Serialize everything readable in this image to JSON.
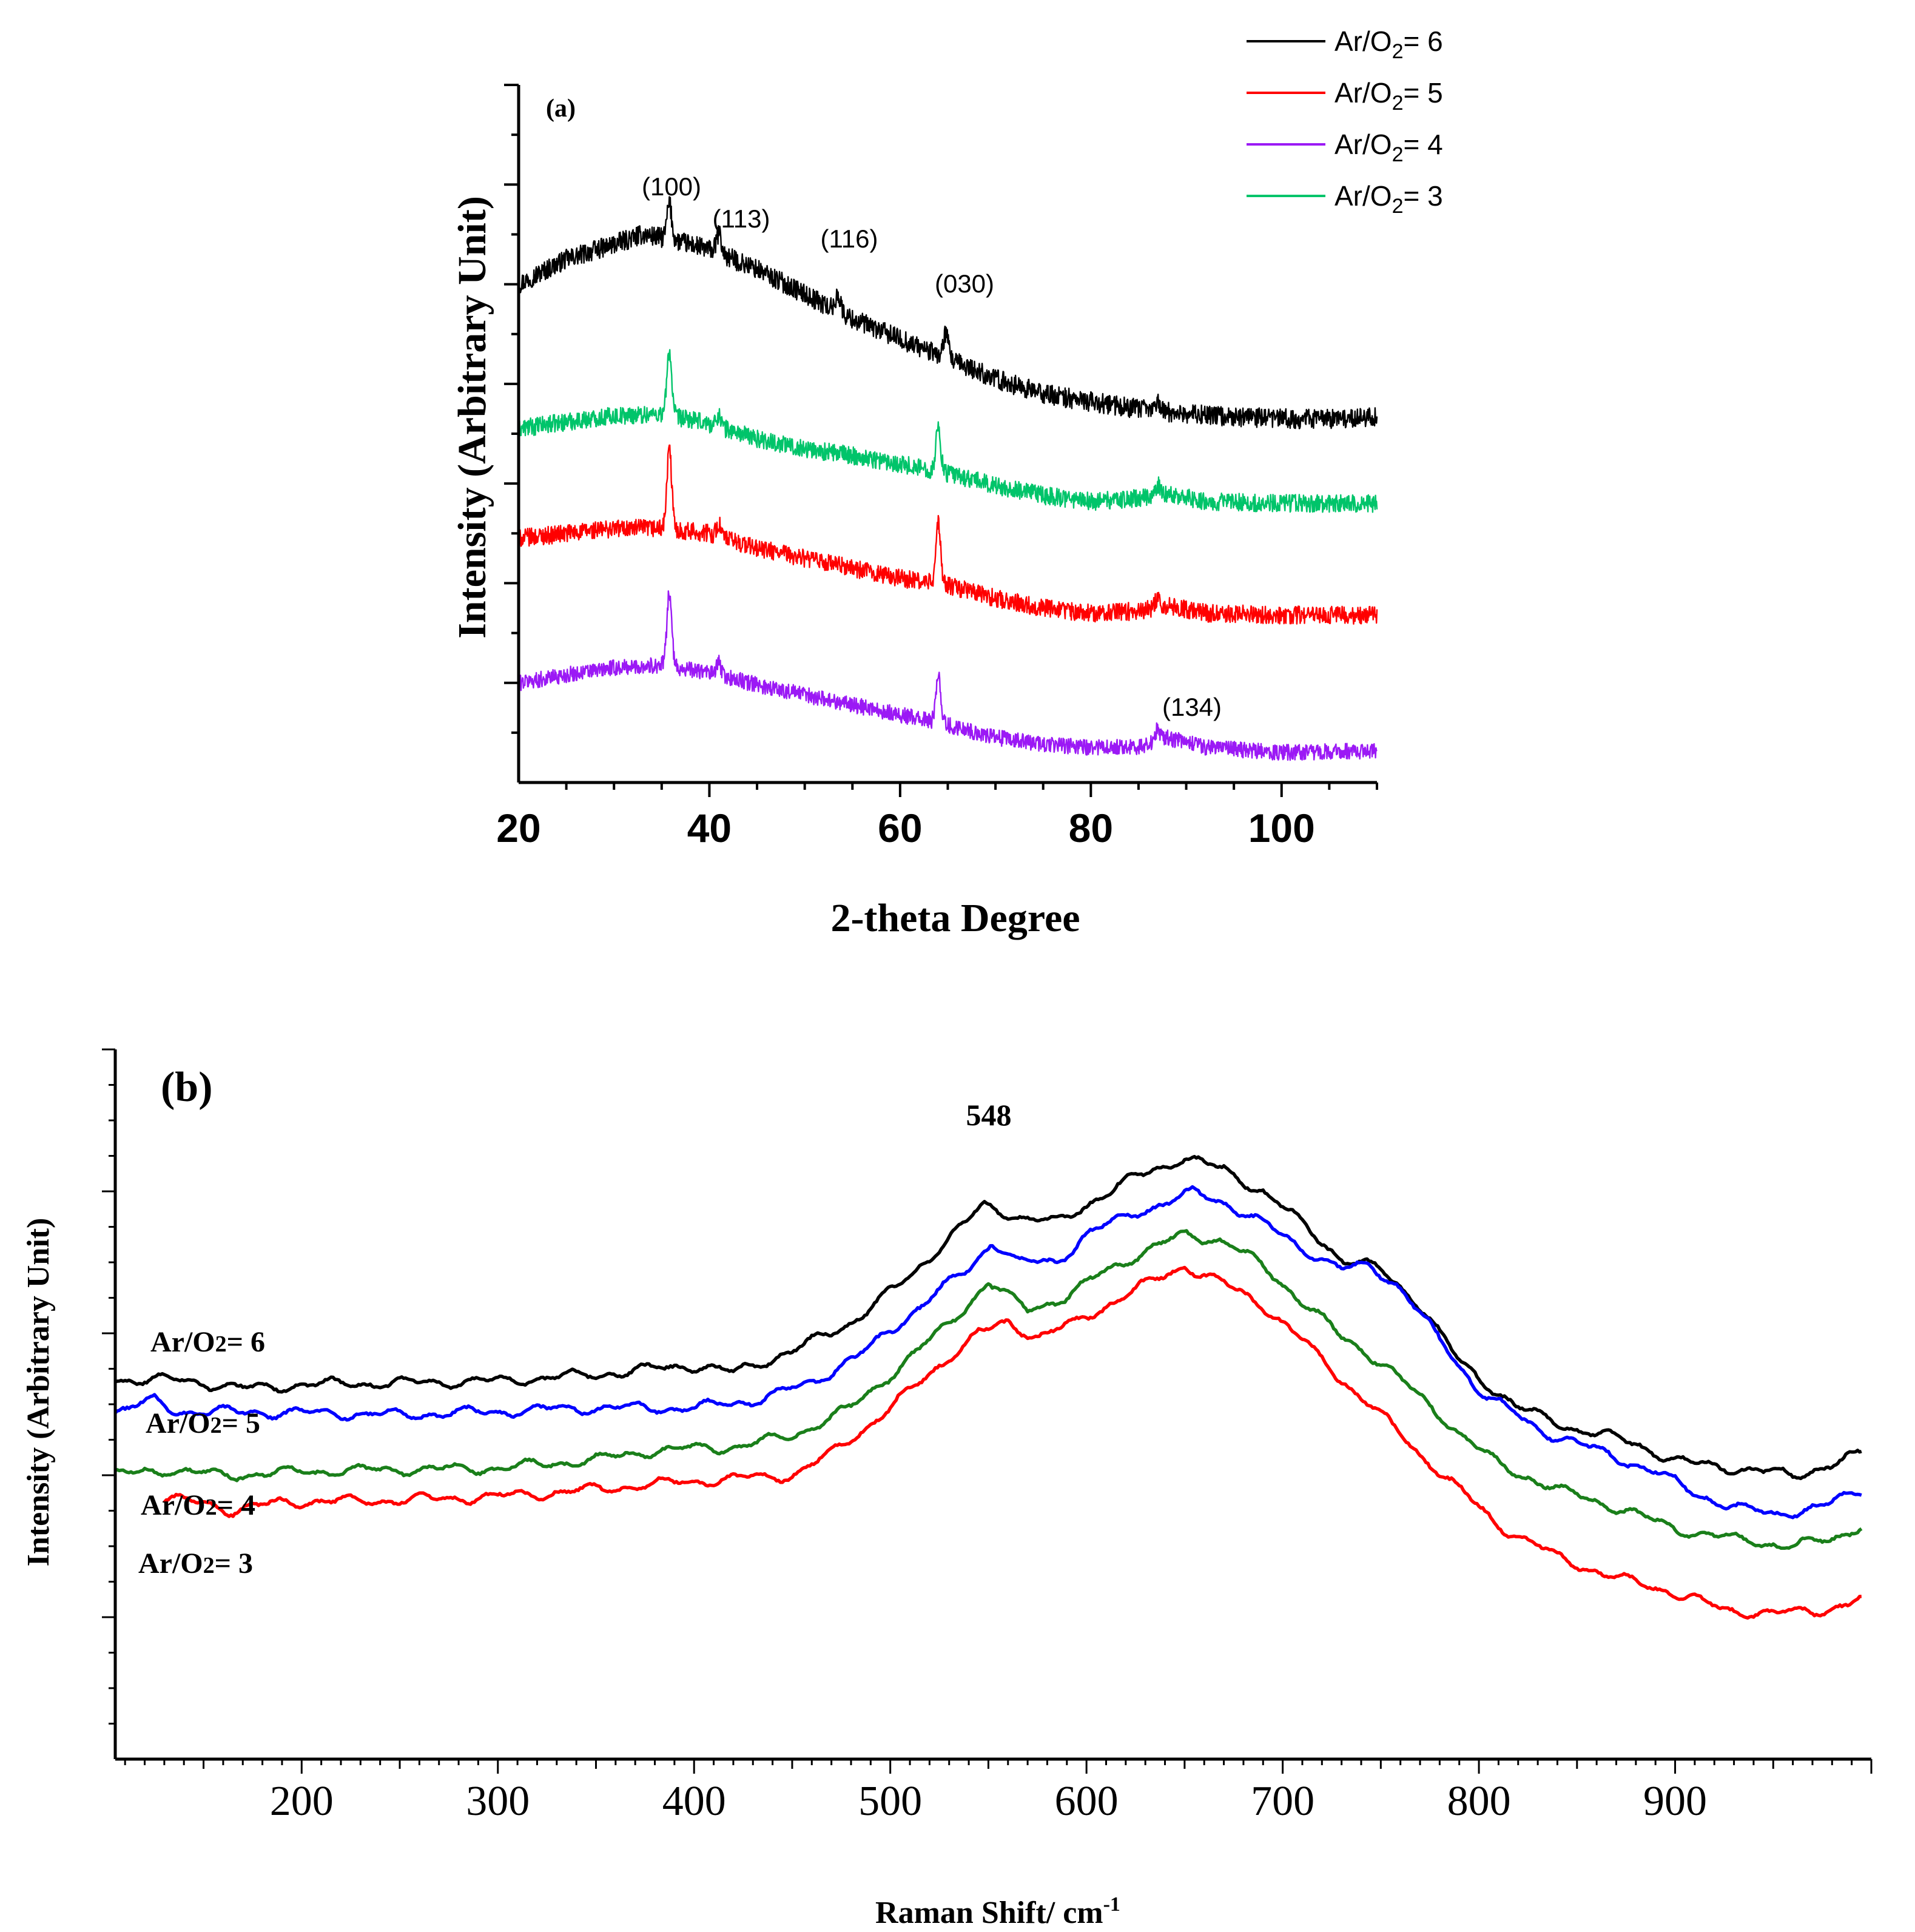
{
  "chart_data": [
    {
      "type": "line",
      "panel": "(a)",
      "title": "",
      "xlabel": "2-theta Degree",
      "ylabel": "Intensity (Arbitrary Unit)",
      "xlim": [
        20,
        110
      ],
      "ylim": [
        0,
        7
      ],
      "x_ticks": [
        20,
        40,
        60,
        80,
        100
      ],
      "y_tick_labels": "none",
      "legend": {
        "position": "top-right",
        "entries": [
          {
            "name": "Ar/O2= 6",
            "prefix": "Ar/O",
            "sub": "2",
            "suffix": "= 6",
            "color": "#000000"
          },
          {
            "name": "Ar/O2= 5",
            "prefix": "Ar/O",
            "sub": "2",
            "suffix": "= 5",
            "color": "#ff0000"
          },
          {
            "name": "Ar/O2= 4",
            "prefix": "Ar/O",
            "sub": "2",
            "suffix": "= 4",
            "color": "#9b19f5"
          },
          {
            "name": "Ar/O2= 3",
            "prefix": "Ar/O",
            "sub": "2",
            "suffix": "= 3",
            "color": "#00c46a"
          }
        ]
      },
      "annotations": [
        "(100)",
        "(113)",
        "(116)",
        "(030)",
        "(134)"
      ],
      "series": [
        {
          "name": "Ar/O2= 6",
          "color": "#000000",
          "noise": 0.1,
          "points": [
            [
              20,
              5.0
            ],
            [
              25,
              5.25
            ],
            [
              30,
              5.4
            ],
            [
              33,
              5.5
            ],
            [
              36,
              5.45
            ],
            [
              40,
              5.35
            ],
            [
              45,
              5.15
            ],
            [
              50,
              4.9
            ],
            [
              55,
              4.65
            ],
            [
              60,
              4.45
            ],
            [
              65,
              4.25
            ],
            [
              70,
              4.05
            ],
            [
              75,
              3.9
            ],
            [
              80,
              3.82
            ],
            [
              85,
              3.75
            ],
            [
              90,
              3.7
            ],
            [
              95,
              3.67
            ],
            [
              100,
              3.65
            ],
            [
              105,
              3.65
            ],
            [
              110,
              3.67
            ]
          ],
          "peaks": [
            [
              35.8,
              0.35
            ],
            [
              41,
              0.2
            ],
            [
              53.5,
              0.18
            ],
            [
              64.8,
              0.25
            ],
            [
              87,
              0.1
            ]
          ]
        },
        {
          "name": "Ar/O2= 3",
          "color": "#00c46a",
          "noise": 0.09,
          "points": [
            [
              20,
              3.55
            ],
            [
              25,
              3.62
            ],
            [
              30,
              3.68
            ],
            [
              35,
              3.7
            ],
            [
              40,
              3.6
            ],
            [
              45,
              3.45
            ],
            [
              50,
              3.35
            ],
            [
              55,
              3.28
            ],
            [
              60,
              3.2
            ],
            [
              65,
              3.1
            ],
            [
              70,
              2.98
            ],
            [
              75,
              2.88
            ],
            [
              80,
              2.82
            ],
            [
              85,
              2.85
            ],
            [
              88,
              2.9
            ],
            [
              92,
              2.82
            ],
            [
              100,
              2.8
            ],
            [
              110,
              2.8
            ]
          ],
          "peaks": [
            [
              35.8,
              0.65
            ],
            [
              41,
              0.12
            ],
            [
              64,
              0.45
            ],
            [
              87,
              0.1
            ]
          ]
        },
        {
          "name": "Ar/O2= 5",
          "color": "#ff0000",
          "noise": 0.09,
          "points": [
            [
              20,
              2.45
            ],
            [
              25,
              2.5
            ],
            [
              30,
              2.55
            ],
            [
              35,
              2.55
            ],
            [
              40,
              2.5
            ],
            [
              45,
              2.35
            ],
            [
              50,
              2.25
            ],
            [
              55,
              2.15
            ],
            [
              60,
              2.05
            ],
            [
              65,
              1.98
            ],
            [
              70,
              1.85
            ],
            [
              75,
              1.75
            ],
            [
              80,
              1.7
            ],
            [
              85,
              1.72
            ],
            [
              88,
              1.78
            ],
            [
              92,
              1.7
            ],
            [
              100,
              1.68
            ],
            [
              110,
              1.68
            ]
          ],
          "peaks": [
            [
              35.8,
              0.8
            ],
            [
              41,
              0.12
            ],
            [
              64,
              0.6
            ],
            [
              87,
              0.1
            ]
          ]
        },
        {
          "name": "Ar/O2= 4",
          "color": "#9b19f5",
          "noise": 0.08,
          "points": [
            [
              20,
              1.0
            ],
            [
              25,
              1.08
            ],
            [
              30,
              1.15
            ],
            [
              35,
              1.18
            ],
            [
              40,
              1.1
            ],
            [
              45,
              0.98
            ],
            [
              50,
              0.88
            ],
            [
              55,
              0.78
            ],
            [
              60,
              0.68
            ],
            [
              65,
              0.58
            ],
            [
              70,
              0.45
            ],
            [
              75,
              0.38
            ],
            [
              80,
              0.35
            ],
            [
              85,
              0.36
            ],
            [
              88,
              0.45
            ],
            [
              92,
              0.35
            ],
            [
              100,
              0.3
            ],
            [
              110,
              0.32
            ]
          ],
          "peaks": [
            [
              35.8,
              0.75
            ],
            [
              41,
              0.12
            ],
            [
              64,
              0.5
            ],
            [
              87,
              0.12
            ]
          ]
        }
      ]
    },
    {
      "type": "line",
      "panel": "(b)",
      "title": "",
      "xlabel": "Raman Shift/ cm-1",
      "xlabel_main": "Raman Shift/ cm",
      "xlabel_sup": "-1",
      "ylabel": "Intensity (Arbitrary Unit)",
      "xlim": [
        105,
        1000
      ],
      "ylim": [
        0,
        10
      ],
      "x_ticks": [
        200,
        300,
        400,
        500,
        600,
        700,
        800,
        900
      ],
      "y_tick_labels": "none",
      "annotations": [
        "548"
      ],
      "series_labels": [
        {
          "name": "Ar/O2= 6",
          "prefix": "Ar/O",
          "sub": "2",
          "suffix": "= 6"
        },
        {
          "name": "Ar/O2= 5",
          "prefix": "Ar/O",
          "sub": "2",
          "suffix": "= 5"
        },
        {
          "name": "Ar/O2= 4",
          "prefix": "Ar/O",
          "sub": "2",
          "suffix": "= 4"
        },
        {
          "name": "Ar/O2= 3",
          "prefix": "Ar/O",
          "sub": "2",
          "suffix": "= 3"
        }
      ],
      "series": [
        {
          "name": "Ar/O2= 6",
          "color": "#000000",
          "points": [
            [
              105,
              5.35
            ],
            [
              130,
              5.35
            ],
            [
              150,
              5.3
            ],
            [
              175,
              5.22
            ],
            [
              200,
              5.28
            ],
            [
              250,
              5.3
            ],
            [
              300,
              5.33
            ],
            [
              350,
              5.42
            ],
            [
              400,
              5.55
            ],
            [
              420,
              5.45
            ],
            [
              450,
              5.75
            ],
            [
              480,
              6.15
            ],
            [
              510,
              6.8
            ],
            [
              530,
              7.35
            ],
            [
              548,
              7.8
            ],
            [
              565,
              7.65
            ],
            [
              585,
              7.55
            ],
            [
              605,
              7.9
            ],
            [
              625,
              8.2
            ],
            [
              650,
              8.48
            ],
            [
              670,
              8.3
            ],
            [
              690,
              8.0
            ],
            [
              710,
              7.55
            ],
            [
              730,
              7.05
            ],
            [
              750,
              6.9
            ],
            [
              770,
              6.4
            ],
            [
              790,
              5.6
            ],
            [
              820,
              4.95
            ],
            [
              850,
              4.65
            ],
            [
              880,
              4.45
            ],
            [
              900,
              4.2
            ],
            [
              930,
              4.1
            ],
            [
              960,
              4.0
            ],
            [
              980,
              4.15
            ],
            [
              995,
              4.3
            ]
          ]
        },
        {
          "name": "Ar/O2= 5",
          "color": "#0000ff",
          "points": [
            [
              105,
              4.9
            ],
            [
              125,
              5.05
            ],
            [
              135,
              4.9
            ],
            [
              200,
              4.88
            ],
            [
              250,
              4.85
            ],
            [
              300,
              4.9
            ],
            [
              350,
              4.95
            ],
            [
              400,
              4.95
            ],
            [
              430,
              5.05
            ],
            [
              460,
              5.3
            ],
            [
              490,
              5.8
            ],
            [
              520,
              6.5
            ],
            [
              540,
              6.9
            ],
            [
              552,
              7.3
            ],
            [
              565,
              7.0
            ],
            [
              585,
              7.0
            ],
            [
              600,
              7.4
            ],
            [
              625,
              7.7
            ],
            [
              655,
              7.98
            ],
            [
              670,
              7.85
            ],
            [
              690,
              7.55
            ],
            [
              710,
              7.2
            ],
            [
              730,
              6.9
            ],
            [
              745,
              6.95
            ],
            [
              760,
              6.65
            ],
            [
              780,
              5.9
            ],
            [
              800,
              5.2
            ],
            [
              830,
              4.65
            ],
            [
              860,
              4.35
            ],
            [
              890,
              4.05
            ],
            [
              910,
              3.75
            ],
            [
              930,
              3.55
            ],
            [
              950,
              3.45
            ],
            [
              975,
              3.55
            ],
            [
              995,
              3.8
            ]
          ]
        },
        {
          "name": "Ar/O2= 4",
          "color": "#1a7f1a",
          "points": [
            [
              105,
              4.0
            ],
            [
              130,
              4.08
            ],
            [
              160,
              4.0
            ],
            [
              200,
              4.05
            ],
            [
              250,
              4.08
            ],
            [
              300,
              4.1
            ],
            [
              350,
              4.22
            ],
            [
              380,
              4.35
            ],
            [
              420,
              4.4
            ],
            [
              450,
              4.55
            ],
            [
              480,
              4.95
            ],
            [
              510,
              5.65
            ],
            [
              530,
              6.15
            ],
            [
              550,
              6.7
            ],
            [
              570,
              6.35
            ],
            [
              590,
              6.5
            ],
            [
              610,
              6.9
            ],
            [
              630,
              7.15
            ],
            [
              650,
              7.4
            ],
            [
              670,
              7.3
            ],
            [
              690,
              6.95
            ],
            [
              710,
              6.45
            ],
            [
              730,
              5.95
            ],
            [
              750,
              5.6
            ],
            [
              770,
              5.1
            ],
            [
              790,
              4.6
            ],
            [
              810,
              4.15
            ],
            [
              840,
              3.8
            ],
            [
              870,
              3.55
            ],
            [
              900,
              3.25
            ],
            [
              930,
              3.1
            ],
            [
              960,
              3.0
            ],
            [
              980,
              3.1
            ],
            [
              995,
              3.3
            ]
          ]
        },
        {
          "name": "Ar/O2= 3",
          "color": "#ff0000",
          "points": [
            [
              130,
              3.65
            ],
            [
              150,
              3.62
            ],
            [
              165,
              3.5
            ],
            [
              190,
              3.62
            ],
            [
              250,
              3.65
            ],
            [
              300,
              3.7
            ],
            [
              350,
              3.8
            ],
            [
              400,
              3.92
            ],
            [
              450,
              4.0
            ],
            [
              470,
              4.3
            ],
            [
              500,
              4.95
            ],
            [
              525,
              5.55
            ],
            [
              545,
              6.0
            ],
            [
              560,
              6.15
            ],
            [
              575,
              5.95
            ],
            [
              595,
              6.15
            ],
            [
              620,
              6.55
            ],
            [
              650,
              6.95
            ],
            [
              670,
              6.7
            ],
            [
              690,
              6.4
            ],
            [
              710,
              5.9
            ],
            [
              730,
              5.35
            ],
            [
              750,
              4.85
            ],
            [
              770,
              4.3
            ],
            [
              790,
              3.8
            ],
            [
              810,
              3.3
            ],
            [
              840,
              2.85
            ],
            [
              870,
              2.55
            ],
            [
              900,
              2.35
            ],
            [
              925,
              2.1
            ],
            [
              950,
              2.05
            ],
            [
              975,
              2.1
            ],
            [
              995,
              2.25
            ]
          ]
        }
      ]
    }
  ]
}
